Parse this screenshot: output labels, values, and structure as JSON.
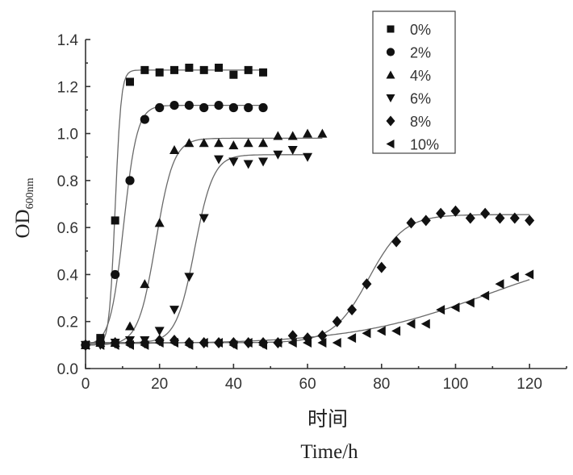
{
  "chart_data": {
    "type": "scatter",
    "title": "",
    "xlabel_cn": "时间",
    "xlabel": "Time/h",
    "ylabel_main": "OD",
    "ylabel_sub": "600nm",
    "xlim": [
      0,
      130
    ],
    "ylim": [
      0,
      1.4
    ],
    "xticks": [
      0,
      20,
      40,
      60,
      80,
      100,
      120
    ],
    "xtick_labels": [
      "0",
      "20",
      "40",
      "60",
      "80",
      "100",
      "120"
    ],
    "yticks": [
      0.0,
      0.2,
      0.4,
      0.6,
      0.8,
      1.0,
      1.2,
      1.4
    ],
    "ytick_labels": [
      "0.0",
      "0.2",
      "0.4",
      "0.6",
      "0.8",
      "1.0",
      "1.2",
      "1.4"
    ],
    "grid": false,
    "legend_position": "top-right",
    "series": [
      {
        "name": "0%",
        "marker": "square",
        "x": [
          0,
          4,
          8,
          12,
          16,
          20,
          24,
          28,
          32,
          36,
          40,
          44,
          48
        ],
        "y": [
          0.1,
          0.13,
          0.63,
          1.22,
          1.27,
          1.26,
          1.27,
          1.28,
          1.27,
          1.28,
          1.25,
          1.27,
          1.26
        ],
        "fit": {
          "base": 0.1,
          "max": 1.27,
          "mid": 8.0,
          "k": 1.25
        }
      },
      {
        "name": "2%",
        "marker": "circle",
        "x": [
          0,
          4,
          8,
          12,
          16,
          20,
          24,
          28,
          32,
          36,
          40,
          44,
          48
        ],
        "y": [
          0.1,
          0.11,
          0.4,
          0.8,
          1.06,
          1.11,
          1.12,
          1.12,
          1.11,
          1.12,
          1.11,
          1.11,
          1.11
        ],
        "fit": {
          "base": 0.1,
          "max": 1.12,
          "mid": 10.3,
          "k": 0.55
        }
      },
      {
        "name": "4%",
        "marker": "triangle-up",
        "x": [
          0,
          4,
          8,
          12,
          16,
          20,
          24,
          28,
          32,
          36,
          40,
          44,
          48,
          52,
          56,
          60,
          64
        ],
        "y": [
          0.1,
          0.11,
          0.11,
          0.18,
          0.36,
          0.62,
          0.93,
          0.96,
          0.96,
          0.96,
          0.95,
          0.96,
          0.96,
          0.99,
          0.99,
          1.0,
          1.0
        ],
        "fit": {
          "base": 0.1,
          "max": 0.98,
          "mid": 19.0,
          "k": 0.42
        }
      },
      {
        "name": "6%",
        "marker": "triangle-down",
        "x": [
          0,
          4,
          8,
          12,
          16,
          20,
          24,
          28,
          32,
          36,
          40,
          44,
          48,
          52,
          56,
          60
        ],
        "y": [
          0.1,
          0.1,
          0.11,
          0.12,
          0.12,
          0.16,
          0.25,
          0.39,
          0.64,
          0.89,
          0.88,
          0.87,
          0.88,
          0.91,
          0.93,
          0.9
        ],
        "fit": {
          "base": 0.11,
          "max": 0.91,
          "mid": 29.5,
          "k": 0.4
        }
      },
      {
        "name": "8%",
        "marker": "diamond",
        "x": [
          0,
          4,
          8,
          12,
          16,
          20,
          24,
          28,
          32,
          36,
          40,
          44,
          48,
          52,
          56,
          60,
          64,
          68,
          72,
          76,
          80,
          84,
          88,
          92,
          96,
          100,
          104,
          108,
          112,
          116,
          120
        ],
        "y": [
          0.1,
          0.11,
          0.11,
          0.11,
          0.11,
          0.12,
          0.12,
          0.11,
          0.11,
          0.11,
          0.11,
          0.11,
          0.11,
          0.11,
          0.14,
          0.13,
          0.14,
          0.2,
          0.25,
          0.36,
          0.43,
          0.54,
          0.62,
          0.63,
          0.66,
          0.67,
          0.64,
          0.66,
          0.64,
          0.64,
          0.63
        ],
        "fit": {
          "base": 0.11,
          "max": 0.655,
          "mid": 76.5,
          "k": 0.21
        }
      },
      {
        "name": "10%",
        "marker": "triangle-left",
        "x": [
          0,
          4,
          8,
          12,
          16,
          20,
          24,
          28,
          32,
          36,
          40,
          44,
          48,
          52,
          56,
          60,
          64,
          68,
          72,
          76,
          80,
          84,
          88,
          92,
          96,
          100,
          104,
          108,
          112,
          116,
          120
        ],
        "y": [
          0.1,
          0.1,
          0.1,
          0.1,
          0.1,
          0.11,
          0.11,
          0.1,
          0.11,
          0.11,
          0.1,
          0.11,
          0.1,
          0.11,
          0.11,
          0.11,
          0.11,
          0.11,
          0.13,
          0.15,
          0.16,
          0.16,
          0.19,
          0.19,
          0.25,
          0.26,
          0.28,
          0.31,
          0.36,
          0.39,
          0.4
        ],
        "fit": {
          "base": 0.105,
          "max": 0.52,
          "mid": 108,
          "k": 0.055
        }
      }
    ]
  }
}
